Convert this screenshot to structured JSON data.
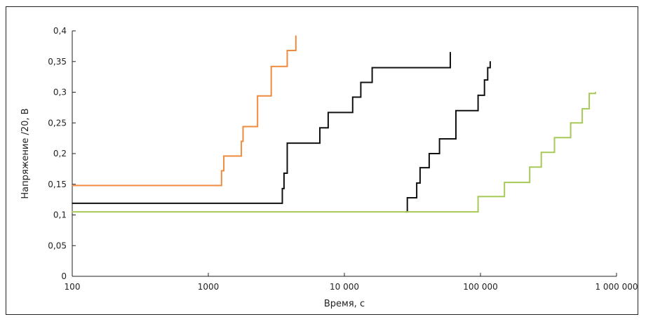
{
  "chart_data": {
    "type": "line",
    "step": true,
    "title": "",
    "xlabel": "Время, с",
    "ylabel": "Напряжение /20, В",
    "x_scale": "log",
    "xlim": [
      100,
      1000000
    ],
    "ylim": [
      0,
      0.4
    ],
    "x_ticks": [
      100,
      1000,
      10000,
      100000,
      1000000
    ],
    "x_tick_labels": [
      "100",
      "1000",
      "10 000",
      "100 000",
      "1 000 000"
    ],
    "y_ticks": [
      0,
      0.05,
      0.1,
      0.15,
      0.2,
      0.25,
      0.3,
      0.35,
      0.4
    ],
    "y_tick_labels": [
      "0",
      "0,05",
      "0,1",
      "0,15",
      "0,2",
      "0,25",
      "0,3",
      "0,35",
      "0,4"
    ],
    "grid": false,
    "legend": "none",
    "series": [
      {
        "color": "#f08a3c",
        "x": [
          100,
          1200,
          1250,
          1300,
          1700,
          1750,
          1800,
          2300,
          2900,
          3800,
          4400
        ],
        "y": [
          0.148,
          0.148,
          0.172,
          0.196,
          0.196,
          0.22,
          0.244,
          0.294,
          0.342,
          0.368,
          0.392
        ]
      },
      {
        "color": "#111111",
        "x": [
          100,
          2000,
          3500,
          3600,
          3800,
          6200,
          6600,
          7600,
          11500,
          13200,
          16000,
          60000
        ],
        "y": [
          0.119,
          0.119,
          0.143,
          0.168,
          0.217,
          0.217,
          0.242,
          0.267,
          0.292,
          0.316,
          0.34,
          0.365
        ]
      },
      {
        "color": "#111111",
        "x": [
          28000,
          29000,
          34000,
          36000,
          42000,
          50000,
          66000,
          96000,
          107000,
          113000,
          118000
        ],
        "y": [
          0.105,
          0.128,
          0.152,
          0.177,
          0.2,
          0.224,
          0.27,
          0.295,
          0.32,
          0.34,
          0.35
        ]
      },
      {
        "color": "#a7c957",
        "x": [
          100,
          90000,
          96000,
          150000,
          230000,
          280000,
          350000,
          460000,
          560000,
          630000,
          700000
        ],
        "y": [
          0.105,
          0.105,
          0.13,
          0.153,
          0.178,
          0.202,
          0.226,
          0.25,
          0.273,
          0.298,
          0.3
        ]
      }
    ]
  }
}
